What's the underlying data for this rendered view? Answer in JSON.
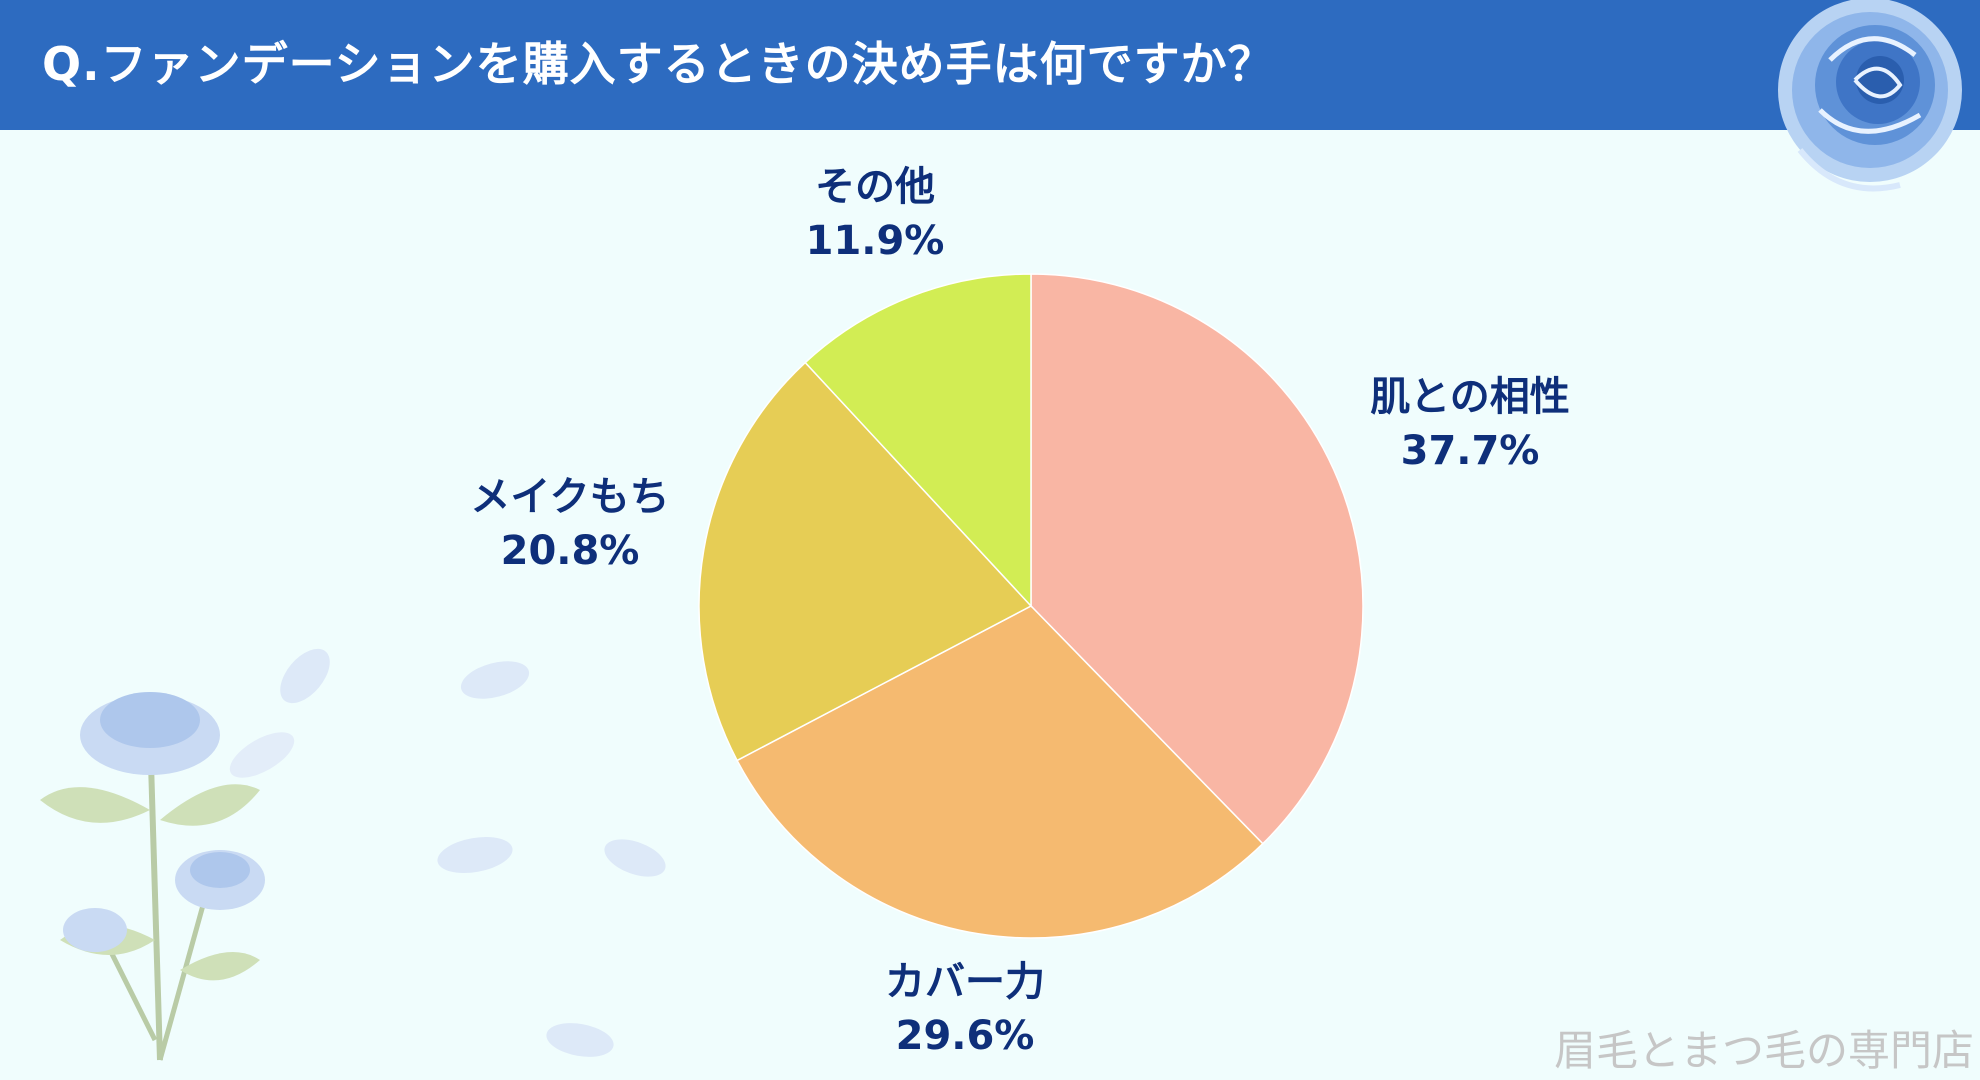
{
  "header": {
    "title": "Q.ファンデーションを購入するときの決め手は何ですか？"
  },
  "colors": {
    "header_bg": "#2d6bc0",
    "page_bg": "#f0fdfd",
    "label_text": "#0e2f7a"
  },
  "chart_data": {
    "type": "pie",
    "title": "",
    "slices": [
      {
        "label": "肌との相性",
        "value": 37.7,
        "value_label": "37.7%",
        "color": "#f9b6a4"
      },
      {
        "label": "カバー力",
        "value": 29.6,
        "value_label": "29.6%",
        "color": "#f5ba70"
      },
      {
        "label": "メイクもち",
        "value": 20.8,
        "value_label": "20.8%",
        "color": "#e6cd55"
      },
      {
        "label": "その他",
        "value": 11.9,
        "value_label": "11.9%",
        "color": "#d2ed54"
      }
    ],
    "start": "12 o'clock",
    "direction": "clockwise"
  },
  "footer": {
    "credit": "眉毛とまつ毛の専門店"
  }
}
